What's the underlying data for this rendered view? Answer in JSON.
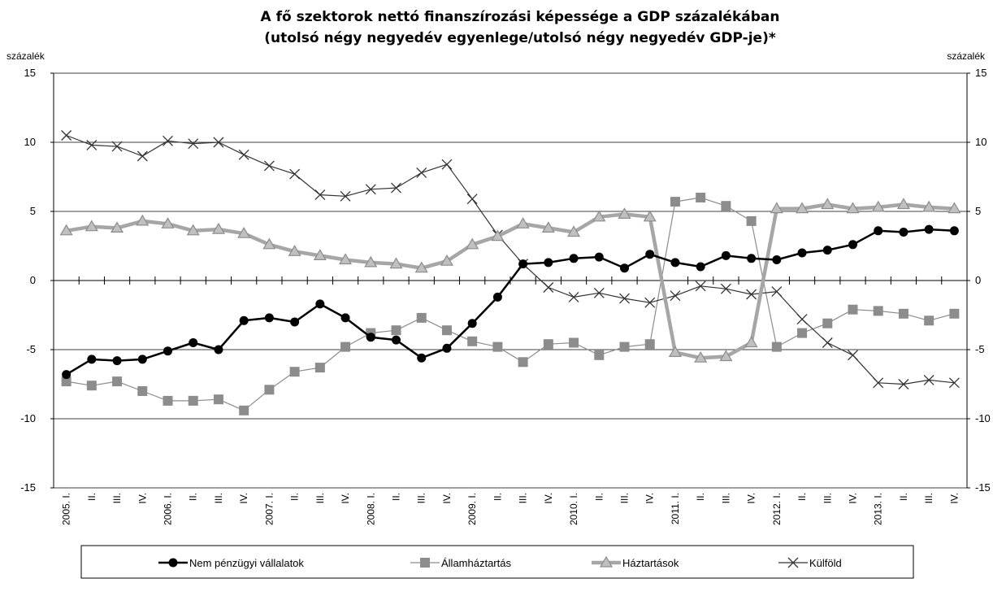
{
  "chart_data": {
    "type": "line",
    "title": "A fő szektorok nettó finanszírozási képessége a GDP százalékában",
    "subtitle": "(utolsó négy negyedév egyenlege/utolsó négy negyedév GDP-je)*",
    "ylabel_left": "százalék",
    "ylabel_right": "százalék",
    "ylim": [
      -15,
      15
    ],
    "yticks": [
      -15,
      -10,
      -5,
      0,
      5,
      10,
      15
    ],
    "ytick_labels_left": [
      "-15",
      "-10",
      "-5",
      "0",
      "5",
      "10",
      "15"
    ],
    "ytick_labels_right": [
      "-15",
      "-10",
      "-5",
      "0",
      "5",
      "10",
      "15"
    ],
    "grid": true,
    "legend_position": "bottom",
    "categories": [
      "2005. I.",
      "II.",
      "III.",
      "IV.",
      "2006. I.",
      "II.",
      "III.",
      "IV.",
      "2007. I.",
      "II.",
      "III.",
      "IV.",
      "2008. I.",
      "II.",
      "III.",
      "IV.",
      "2009. I.",
      "II.",
      "III.",
      "IV.",
      "2010. I.",
      "II.",
      "III.",
      "IV.",
      "2011. I.",
      "II.",
      "III.",
      "IV.",
      "2012. I.",
      "II.",
      "III.",
      "IV.",
      "2013. I.",
      "II.",
      "III.",
      "IV."
    ],
    "series": [
      {
        "name": "Nem pénzügyi vállalatok",
        "color": "#000000",
        "marker": "circle",
        "values": [
          -6.8,
          -5.7,
          -5.8,
          -5.7,
          -5.1,
          -4.5,
          -5.0,
          -2.9,
          -2.7,
          -3.0,
          -1.7,
          -2.7,
          -4.1,
          -4.3,
          -5.6,
          -4.9,
          -3.1,
          -1.2,
          1.2,
          1.3,
          1.6,
          1.7,
          0.9,
          1.9,
          1.3,
          1.0,
          1.8,
          1.6,
          1.5,
          2.0,
          2.2,
          2.6,
          3.6,
          3.5,
          3.7,
          3.6
        ]
      },
      {
        "name": "Államháztartás",
        "color": "#8c8c8c",
        "marker": "square",
        "values": [
          -7.3,
          -7.6,
          -7.3,
          -8.0,
          -8.7,
          -8.7,
          -8.6,
          -9.4,
          -7.9,
          -6.6,
          -6.3,
          -4.8,
          -3.8,
          -3.6,
          -2.7,
          -3.6,
          -4.4,
          -4.8,
          -5.9,
          -4.6,
          -4.5,
          -5.4,
          -4.8,
          -4.6,
          5.7,
          6.0,
          5.4,
          4.3,
          -4.8,
          -3.8,
          -3.1,
          -2.1,
          -2.2,
          -2.4,
          -2.9,
          -2.4
        ]
      },
      {
        "name": "Háztartások",
        "color": "#a6a6a6",
        "marker": "triangle",
        "values": [
          3.6,
          3.9,
          3.8,
          4.3,
          4.1,
          3.6,
          3.7,
          3.4,
          2.6,
          2.1,
          1.8,
          1.5,
          1.3,
          1.2,
          0.9,
          1.4,
          2.6,
          3.2,
          4.1,
          3.8,
          3.5,
          4.6,
          4.8,
          4.6,
          -5.2,
          -5.6,
          -5.5,
          -4.5,
          5.2,
          5.2,
          5.5,
          5.2,
          5.3,
          5.5,
          5.3,
          5.2
        ]
      },
      {
        "name": "Külföld",
        "color": "#333333",
        "marker": "x",
        "values": [
          10.5,
          9.8,
          9.7,
          9.0,
          10.1,
          9.9,
          10.0,
          9.1,
          8.3,
          7.7,
          6.2,
          6.1,
          6.6,
          6.7,
          7.8,
          8.4,
          5.9,
          3.3,
          1.2,
          -0.5,
          -1.2,
          -0.9,
          -1.3,
          -1.6,
          -1.1,
          -0.4,
          -0.6,
          -1.0,
          -0.8,
          -2.8,
          -4.5,
          -5.4,
          -7.4,
          -7.5,
          -7.2,
          -7.4
        ]
      }
    ]
  }
}
